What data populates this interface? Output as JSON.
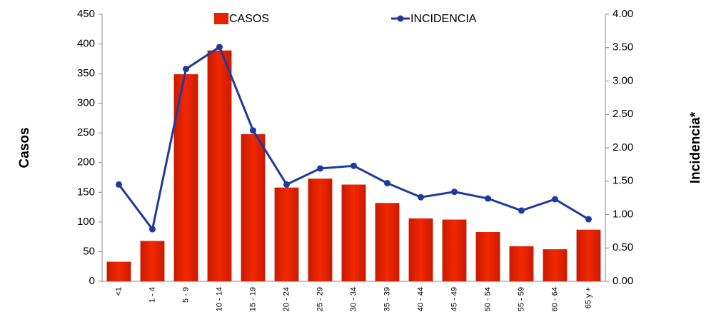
{
  "chart_data": {
    "type": "bar_line",
    "y_label": "Casos",
    "y2_label": "Incidencia*",
    "categories": [
      "<1",
      "1 - 4",
      "5 - 9",
      "10 - 14",
      "15 - 19",
      "20 - 24",
      "25 - 29",
      "30 - 34",
      "35 - 39",
      "40 - 44",
      "45 - 49",
      "50 - 54",
      "55 - 59",
      "60 - 64",
      "65 y +"
    ],
    "series": [
      {
        "name": "CASOS",
        "type": "bar",
        "color": "#e52200",
        "values": [
          33,
          68,
          349,
          389,
          248,
          158,
          173,
          163,
          132,
          106,
          104,
          83,
          59,
          54,
          87
        ]
      },
      {
        "name": "INCIDENCIA",
        "type": "line",
        "axis": "y2",
        "color": "#1f3a9e",
        "values": [
          1.45,
          0.78,
          3.18,
          3.51,
          2.26,
          1.45,
          1.69,
          1.73,
          1.47,
          1.26,
          1.34,
          1.24,
          1.06,
          1.23,
          0.93
        ]
      }
    ],
    "ylim": [
      0,
      450
    ],
    "yticks": [
      0,
      50,
      100,
      150,
      200,
      250,
      300,
      350,
      400,
      450
    ],
    "y2lim": [
      0,
      4
    ],
    "y2ticks": [
      {
        "value": 0,
        "label": "0.00"
      },
      {
        "value": 0.5,
        "label": "0.50"
      },
      {
        "value": 1,
        "label": "1.00"
      },
      {
        "value": 1.5,
        "label": "1.50"
      },
      {
        "value": 2,
        "label": "2.00"
      },
      {
        "value": 2.5,
        "label": "2.50"
      },
      {
        "value": 3,
        "label": "3.00"
      },
      {
        "value": 3.5,
        "label": "3.50"
      },
      {
        "value": 4,
        "label": "4.00"
      }
    ],
    "legend": "top"
  }
}
